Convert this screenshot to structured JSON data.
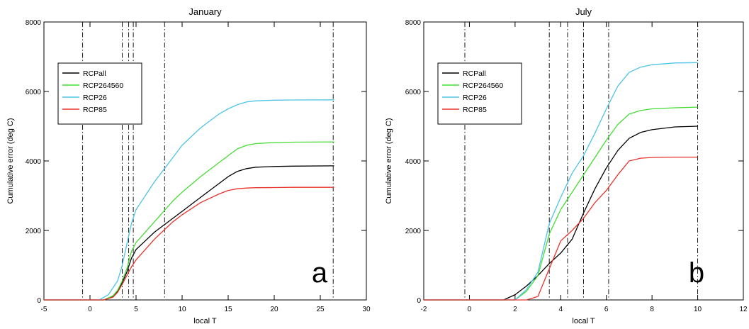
{
  "chart_data": [
    {
      "type": "line",
      "title": "January",
      "xlabel": "local T",
      "ylabel": "Cumulative error (deg C)",
      "xlim": [
        -5,
        30
      ],
      "ylim": [
        0,
        8000
      ],
      "xticks": [
        -5,
        0,
        5,
        10,
        15,
        20,
        25,
        30
      ],
      "yticks": [
        0,
        2000,
        4000,
        6000,
        8000
      ],
      "vlines": [
        -0.8,
        3.5,
        4.2,
        4.7,
        8.1,
        26.4
      ],
      "panel_letter": "a",
      "legend_position": "upper-left",
      "series": [
        {
          "name": "RCPall",
          "color": "#000000",
          "x": [
            -5,
            1.5,
            2.5,
            3.0,
            3.5,
            4.0,
            4.5,
            5.0,
            6.0,
            7.0,
            8.0,
            9.0,
            10.0,
            12.0,
            14.0,
            15.0,
            16.0,
            17.0,
            18.0,
            20.0,
            22.0,
            26.5
          ],
          "y": [
            0,
            0,
            100,
            250,
            500,
            800,
            1200,
            1450,
            1700,
            1950,
            2150,
            2350,
            2550,
            2950,
            3350,
            3550,
            3700,
            3780,
            3820,
            3840,
            3850,
            3860
          ]
        },
        {
          "name": "RCP264560",
          "color": "#44dd33",
          "x": [
            -5,
            1.5,
            2.5,
            3.0,
            3.5,
            4.0,
            4.5,
            5.0,
            6.0,
            7.0,
            8.0,
            9.0,
            10.0,
            12.0,
            14.0,
            15.0,
            16.0,
            17.0,
            18.0,
            20.0,
            22.0,
            26.5
          ],
          "y": [
            0,
            0,
            120,
            280,
            550,
            900,
            1400,
            1650,
            1950,
            2250,
            2550,
            2850,
            3100,
            3550,
            3950,
            4150,
            4350,
            4450,
            4500,
            4530,
            4540,
            4550
          ]
        },
        {
          "name": "RCP26",
          "color": "#4fc3e8",
          "x": [
            -5,
            1.0,
            2.0,
            3.0,
            3.5,
            4.0,
            4.5,
            5.0,
            6.0,
            7.0,
            8.0,
            9.0,
            10.0,
            12.0,
            14.0,
            15.0,
            16.0,
            17.0,
            18.0,
            20.0,
            22.0,
            26.5
          ],
          "y": [
            0,
            0,
            150,
            550,
            1000,
            1600,
            2200,
            2600,
            3000,
            3400,
            3750,
            4100,
            4450,
            4950,
            5350,
            5500,
            5620,
            5700,
            5730,
            5750,
            5755,
            5760
          ]
        },
        {
          "name": "RCP85",
          "color": "#e8322b",
          "x": [
            -5,
            1.5,
            2.5,
            3.0,
            3.5,
            4.0,
            4.5,
            5.0,
            6.0,
            7.0,
            8.0,
            9.0,
            10.0,
            12.0,
            14.0,
            15.0,
            16.0,
            17.0,
            18.0,
            20.0,
            22.0,
            26.5
          ],
          "y": [
            0,
            0,
            80,
            220,
            450,
            700,
            950,
            1150,
            1450,
            1750,
            2000,
            2250,
            2450,
            2800,
            3050,
            3150,
            3200,
            3220,
            3230,
            3235,
            3240,
            3240
          ]
        }
      ]
    },
    {
      "type": "line",
      "title": "July",
      "xlabel": "local T",
      "ylabel": "Cumulative error (deg C)",
      "xlim": [
        -2,
        12
      ],
      "ylim": [
        0,
        8000
      ],
      "xticks": [
        -2,
        0,
        2,
        4,
        6,
        8,
        10,
        12
      ],
      "yticks": [
        0,
        2000,
        4000,
        6000,
        8000
      ],
      "vlines": [
        -0.2,
        3.5,
        4.3,
        5.0,
        6.1,
        10.0
      ],
      "panel_letter": "b",
      "legend_position": "upper-left",
      "series": [
        {
          "name": "RCPall",
          "color": "#000000",
          "x": [
            -2,
            1.5,
            2.0,
            2.5,
            3.0,
            3.5,
            4.0,
            4.5,
            5.0,
            5.5,
            6.0,
            6.5,
            7.0,
            7.5,
            8.0,
            9.0,
            10.0
          ],
          "y": [
            0,
            0,
            150,
            400,
            700,
            1050,
            1350,
            1750,
            2500,
            3200,
            3800,
            4300,
            4650,
            4820,
            4900,
            4980,
            5000
          ]
        },
        {
          "name": "RCP264560",
          "color": "#44dd33",
          "x": [
            -2,
            2.0,
            2.5,
            3.0,
            3.5,
            4.0,
            4.5,
            5.0,
            5.5,
            6.0,
            6.5,
            7.0,
            7.5,
            8.0,
            9.0,
            10.0
          ],
          "y": [
            0,
            0,
            250,
            700,
            1900,
            2600,
            3100,
            3600,
            4100,
            4600,
            5050,
            5350,
            5450,
            5500,
            5530,
            5550
          ]
        },
        {
          "name": "RCP26",
          "color": "#4fc3e8",
          "x": [
            -2,
            2.0,
            2.5,
            3.0,
            3.5,
            4.0,
            4.5,
            5.0,
            5.5,
            6.0,
            6.5,
            7.0,
            7.5,
            8.0,
            9.0,
            10.0
          ],
          "y": [
            0,
            0,
            300,
            800,
            2200,
            2950,
            3650,
            4150,
            4800,
            5500,
            6150,
            6550,
            6700,
            6770,
            6820,
            6830
          ]
        },
        {
          "name": "RCP85",
          "color": "#e8322b",
          "x": [
            -2,
            2.5,
            3.0,
            3.5,
            4.0,
            4.5,
            5.0,
            5.5,
            6.0,
            6.5,
            7.0,
            7.5,
            8.0,
            9.0,
            10.0
          ],
          "y": [
            0,
            0,
            100,
            900,
            1700,
            2000,
            2350,
            2800,
            3150,
            3600,
            4000,
            4080,
            4100,
            4110,
            4110
          ]
        }
      ]
    }
  ]
}
